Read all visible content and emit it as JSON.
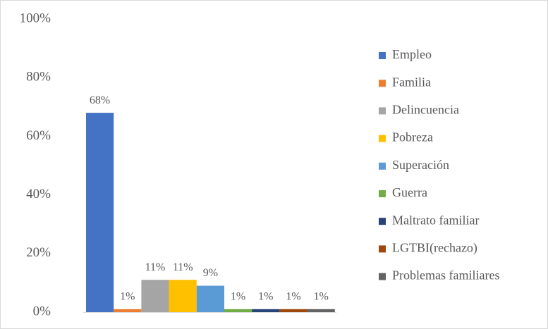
{
  "chart_data": {
    "type": "bar",
    "categories": [
      null
    ],
    "series": [
      {
        "name": "Empleo",
        "color": "#4472c4",
        "values": [
          68
        ],
        "value_labels": [
          "68%"
        ]
      },
      {
        "name": "Familia",
        "color": "#ed7d31",
        "values": [
          1
        ],
        "value_labels": [
          "1%"
        ]
      },
      {
        "name": "Delincuencia",
        "color": "#a5a5a5",
        "values": [
          11
        ],
        "value_labels": [
          "11%"
        ]
      },
      {
        "name": "Pobreza",
        "color": "#ffc000",
        "values": [
          11
        ],
        "value_labels": [
          "11%"
        ]
      },
      {
        "name": "Superación",
        "color": "#5b9bd5",
        "values": [
          9
        ],
        "value_labels": [
          "9%"
        ]
      },
      {
        "name": "Guerra",
        "color": "#70ad47",
        "values": [
          1
        ],
        "value_labels": [
          "1%"
        ]
      },
      {
        "name": "Maltrato familiar",
        "color": "#264478",
        "values": [
          1
        ],
        "value_labels": [
          "1%"
        ]
      },
      {
        "name": "LGTBI(rechazo)",
        "color": "#9e480e",
        "values": [
          1
        ],
        "value_labels": [
          "1%"
        ]
      },
      {
        "name": "Problemas familiares",
        "color": "#636363",
        "values": [
          1
        ],
        "value_labels": [
          "1%"
        ]
      }
    ],
    "ylim": [
      0,
      100
    ],
    "yticks": [
      {
        "value": 0,
        "label": "0%"
      },
      {
        "value": 20,
        "label": "20%"
      },
      {
        "value": 40,
        "label": "40%"
      },
      {
        "value": 60,
        "label": "60%"
      },
      {
        "value": 80,
        "label": "80%"
      },
      {
        "value": 100,
        "label": "100%"
      }
    ],
    "grid": false,
    "legend": "right"
  }
}
